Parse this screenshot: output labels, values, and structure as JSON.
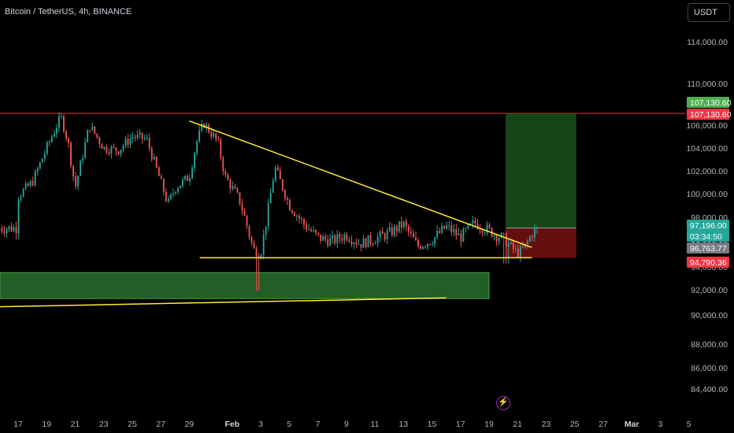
{
  "header": {
    "title": "Bitcoin / TetherUS, 4h, BINANCE",
    "currency": "USDT"
  },
  "chart_data": {
    "type": "candlestick",
    "x_tick_labels": [
      "17",
      "19",
      "21",
      "23",
      "25",
      "27",
      "29",
      "Feb",
      "3",
      "5",
      "7",
      "9",
      "11",
      "13",
      "15",
      "17",
      "19",
      "21",
      "23",
      "25",
      "27",
      "Mar",
      "3",
      "5"
    ],
    "y_tick_values": [
      84400,
      86000,
      88000,
      90000,
      92000,
      94000,
      96000,
      98000,
      100000,
      102000,
      104000,
      106000,
      110000,
      114000
    ],
    "y_tick_labels": [
      "84,400.00",
      "86,000.00",
      "88,000.00",
      "90,000.00",
      "92,000.00",
      "94,000.00",
      "96,000.00",
      "98,000.00",
      "100,000.00",
      "102,000.00",
      "104,000.00",
      "106,000.00",
      "110,000.00",
      "114,000.00"
    ],
    "resistance_level": 107130.6,
    "price_labels": [
      {
        "text": "107,130.60",
        "value": 107130.6,
        "color": "#4caf50"
      },
      {
        "text": "107,130.60",
        "value": 107130.6,
        "color": "#f23645"
      },
      {
        "text": "97,196.00",
        "value": 97196,
        "color": "#26a69a"
      },
      {
        "text": "03:34:50",
        "value": 96600,
        "color": "#26a69a"
      },
      {
        "text": "96,763.77",
        "value": 96763.77,
        "color": "#787b86"
      },
      {
        "text": "94,790.36",
        "value": 94790.36,
        "color": "#f23645"
      }
    ],
    "descending_trendline": [
      {
        "date": "2025-01-29",
        "price": 106400
      },
      {
        "date": "2025-02-22",
        "price": 95700
      }
    ],
    "support_line": {
      "from": "2025-01-30",
      "to": "2025-02-22",
      "price": 94800
    },
    "demand_zone": {
      "from": "2025-01-13",
      "to": "2025-02-19",
      "low": 91300,
      "high": 93500
    },
    "rising_trendline": [
      {
        "date": "2025-01-13",
        "price": 90650
      },
      {
        "date": "2025-02-16",
        "price": 91350
      }
    ],
    "long_position": {
      "from": "2025-02-20",
      "to": "2025-02-25",
      "entry": 97196,
      "target": 107130.6,
      "stop": 94790.36
    },
    "colors": {
      "up": "#26a69a",
      "down": "#ef5350",
      "trendline": "#ffeb3b",
      "resistance": "#b2302c",
      "zone": "#2e7d32"
    }
  }
}
